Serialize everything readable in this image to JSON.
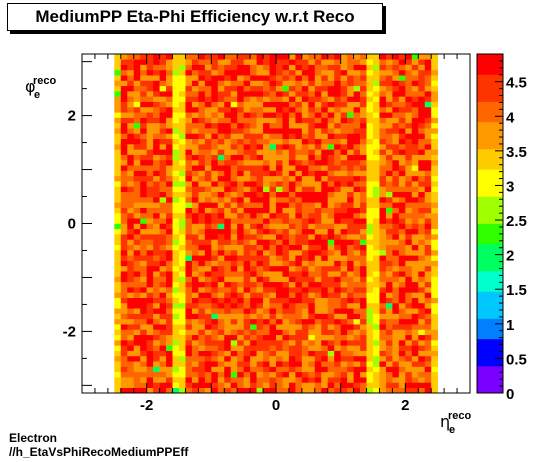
{
  "title": "MediumPP Eta-Phi Efficiency w.r.t Reco",
  "footer": {
    "line1": "Electron",
    "line2": "//h_EtaVsPhiRecoMediumPPEff"
  },
  "chart_data": {
    "type": "heatmap",
    "title": "MediumPP Eta-Phi Efficiency w.r.t Reco",
    "xlabel": {
      "base": "η",
      "sub": "e",
      "sup": "reco"
    },
    "ylabel": {
      "base": "φ",
      "sub": "e",
      "sup": "reco"
    },
    "xlim": [
      -3.0,
      3.0
    ],
    "ylim": [
      -3.1416,
      3.1416
    ],
    "x_ticks": [
      -2,
      0,
      2
    ],
    "y_ticks": [
      -2,
      0,
      2
    ],
    "z_range": [
      0,
      4.9
    ],
    "z_ticks": [
      0,
      0.5,
      1,
      1.5,
      2,
      2.5,
      3,
      3.5,
      4,
      4.5
    ],
    "grid": false,
    "x_bins": {
      "start": -2.5,
      "end": 2.5,
      "count": 50
    },
    "y_bins": {
      "start": -3.1416,
      "end": 3.1416,
      "count": 64
    },
    "gap_columns_eta": [
      -1.5,
      1.5
    ],
    "edge_columns_eta": [
      -2.5,
      2.5
    ],
    "typical_value_range": [
      3.5,
      4.9
    ],
    "colorscale": [
      "#7a00ff",
      "#0000ff",
      "#0080ff",
      "#00c8ff",
      "#00ffcc",
      "#00ff60",
      "#30ff00",
      "#a0ff00",
      "#ffff00",
      "#ffcc00",
      "#ff9900",
      "#ff6600",
      "#ff3300",
      "#ff0000"
    ]
  }
}
